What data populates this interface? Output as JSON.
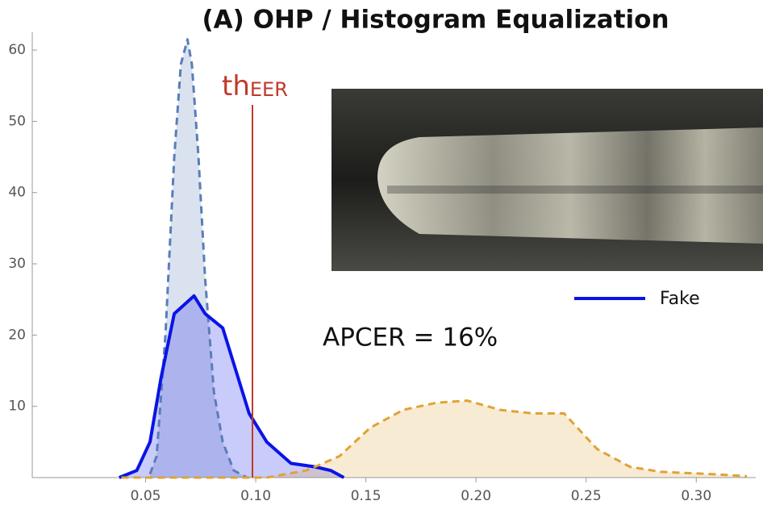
{
  "chart_data": {
    "type": "density",
    "title": "(A) OHP / Histogram Equalization",
    "xlim": [
      0,
      0.327
    ],
    "ylim": [
      0,
      62.5
    ],
    "xticks": [
      0.05,
      {
        "value": 0.1,
        "label": "0.10"
      },
      0.15,
      {
        "value": 0.2,
        "label": "0.20"
      },
      0.25,
      {
        "value": 0.3,
        "label": "0.30"
      }
    ],
    "yticks": [
      10,
      20,
      30,
      40,
      50,
      60
    ],
    "series": [
      {
        "color": "#5a7db8",
        "dashed": true,
        "x": [
          0.052,
          0.055,
          0.059,
          0.063,
          0.066,
          0.069,
          0.071,
          0.074,
          0.077,
          0.081,
          0.085,
          0.09,
          0.096
        ],
        "values": [
          0.5,
          3,
          20,
          45,
          58,
          61.5,
          58,
          45,
          28,
          12,
          5,
          1,
          0
        ]
      },
      {
        "name": "Fake",
        "color": "#0a14e6",
        "dashed": false,
        "x": [
          0.038,
          0.046,
          0.052,
          0.057,
          0.063,
          0.072,
          0.077,
          0.085,
          0.09,
          0.097,
          0.105,
          0.116,
          0.127,
          0.134,
          0.14
        ],
        "values": [
          0,
          1,
          5,
          14,
          23,
          25.5,
          23,
          21,
          16,
          9,
          5,
          2,
          1.5,
          1,
          0
        ]
      },
      {
        "color": "#e0a235",
        "dashed": true,
        "x": [
          0.039,
          0.105,
          0.123,
          0.138,
          0.152,
          0.167,
          0.182,
          0.196,
          0.211,
          0.226,
          0.24,
          0.255,
          0.27,
          0.284,
          0.306,
          0.323
        ],
        "values": [
          0,
          0,
          1,
          3,
          7,
          9.5,
          10.5,
          10.8,
          9.5,
          9,
          9,
          4,
          1.5,
          0.8,
          0.5,
          0.2
        ]
      }
    ],
    "threshold": {
      "x": 0.0985,
      "label": "th",
      "subscript": "EER",
      "color": "#c0392b"
    },
    "annotation": "APCER = 16%"
  }
}
